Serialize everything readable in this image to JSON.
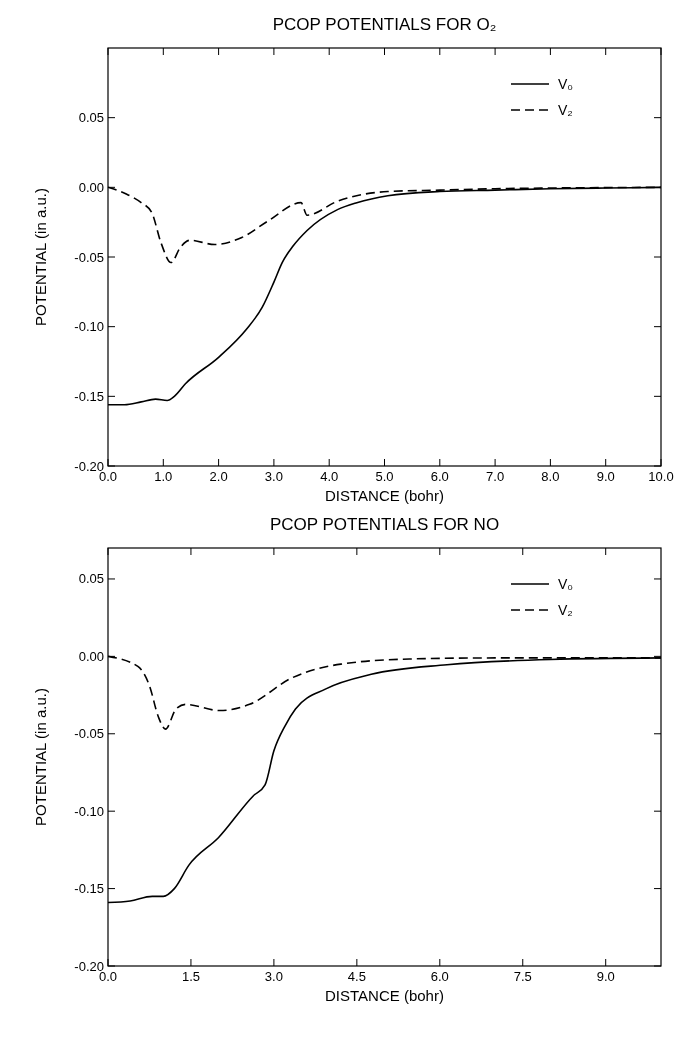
{
  "chart_data": [
    {
      "type": "line",
      "title": "PCOP POTENTIALS FOR O₂",
      "xlabel": "DISTANCE (bohr)",
      "ylabel": "POTENTIAL (in a.u.)",
      "legend": "top right",
      "grid": false,
      "xlim": [
        0,
        10
      ],
      "ylim": [
        -0.2,
        0.1
      ],
      "xticks": [
        {
          "value": 0,
          "label": "0.0"
        },
        {
          "value": 1,
          "label": "1.0"
        },
        {
          "value": 2,
          "label": "2.0"
        },
        {
          "value": 3,
          "label": "3.0"
        },
        {
          "value": 4,
          "label": "4.0"
        },
        {
          "value": 5,
          "label": "5.0"
        },
        {
          "value": 6,
          "label": "6.0"
        },
        {
          "value": 7,
          "label": "7.0"
        },
        {
          "value": 8,
          "label": "8.0"
        },
        {
          "value": 9,
          "label": "9.0"
        },
        {
          "value": 10,
          "label": "10.0"
        }
      ],
      "yticks": [
        {
          "value": -0.2,
          "label": "-0.20"
        },
        {
          "value": -0.15,
          "label": "-0.15"
        },
        {
          "value": -0.1,
          "label": "-0.10"
        },
        {
          "value": -0.05,
          "label": "-0.05"
        },
        {
          "value": 0,
          "label": "0.00"
        },
        {
          "value": 0.05,
          "label": "0.05"
        }
      ],
      "series": [
        {
          "name": "V₀",
          "color": "#000000",
          "line_style": "solid",
          "x": [
            0,
            0.3,
            0.6,
            0.86,
            1.07,
            1.2,
            1.4,
            2.0,
            2.5,
            2.79,
            3.0,
            3.15,
            3.35,
            3.6,
            4.15,
            4.5,
            5.06,
            6,
            7,
            8,
            9,
            10
          ],
          "values": [
            -0.156,
            -0.156,
            -0.154,
            -0.152,
            -0.153,
            -0.15,
            -0.141,
            -0.122,
            -0.102,
            -0.086,
            -0.068,
            -0.054,
            -0.042,
            -0.031,
            -0.016,
            -0.011,
            -0.006,
            -0.003,
            -0.002,
            -0.001,
            -0.0005,
            0
          ]
        },
        {
          "name": "V₂",
          "color": "#000000",
          "line_style": "dashed",
          "x": [
            0,
            0.34,
            0.6,
            0.79,
            0.96,
            1.14,
            1.31,
            1.48,
            1.93,
            2.42,
            2.9,
            3.49,
            3.6,
            4.15,
            5.06,
            6,
            7,
            8,
            10
          ],
          "values": [
            0,
            -0.005,
            -0.011,
            -0.018,
            -0.04,
            -0.054,
            -0.043,
            -0.038,
            -0.041,
            -0.036,
            -0.024,
            -0.011,
            -0.02,
            -0.01,
            -0.003,
            -0.002,
            -0.001,
            -0.0005,
            0
          ]
        }
      ]
    },
    {
      "type": "line",
      "title": "PCOP POTENTIALS FOR NO",
      "xlabel": "DISTANCE (bohr)",
      "ylabel": "POTENTIAL (in a.u.)",
      "legend": "top right",
      "grid": false,
      "xlim": [
        0,
        10
      ],
      "ylim": [
        -0.2,
        0.07
      ],
      "xticks": [
        {
          "value": 0,
          "label": "0.0"
        },
        {
          "value": 1.5,
          "label": "1.5"
        },
        {
          "value": 3,
          "label": "3.0"
        },
        {
          "value": 4.5,
          "label": "4.5"
        },
        {
          "value": 6,
          "label": "6.0"
        },
        {
          "value": 7.5,
          "label": "7.5"
        },
        {
          "value": 9,
          "label": "9.0"
        }
      ],
      "yticks": [
        {
          "value": -0.2,
          "label": "-0.20"
        },
        {
          "value": -0.15,
          "label": "-0.15"
        },
        {
          "value": -0.1,
          "label": "-0.10"
        },
        {
          "value": -0.05,
          "label": "-0.05"
        },
        {
          "value": 0,
          "label": "0.00"
        },
        {
          "value": 0.05,
          "label": "0.05"
        }
      ],
      "series": [
        {
          "name": "V₀",
          "color": "#000000",
          "line_style": "solid",
          "x": [
            0,
            0.4,
            0.8,
            1.0,
            1.2,
            1.46,
            2.0,
            2.63,
            2.84,
            3.0,
            3.2,
            3.39,
            3.94,
            4.76,
            6.13,
            8,
            10
          ],
          "values": [
            -0.159,
            -0.158,
            -0.155,
            -0.155,
            -0.15,
            -0.135,
            -0.117,
            -0.09,
            -0.083,
            -0.061,
            -0.045,
            -0.034,
            -0.021,
            -0.0116,
            -0.0054,
            -0.002,
            -0.001
          ]
        },
        {
          "name": "V₂",
          "color": "#000000",
          "line_style": "dashed",
          "x": [
            0,
            0.54,
            0.75,
            0.91,
            1.04,
            1.23,
            1.4,
            2.02,
            2.56,
            3.32,
            4.21,
            5.45,
            7,
            10
          ],
          "values": [
            0,
            -0.0065,
            -0.019,
            -0.039,
            -0.047,
            -0.034,
            -0.031,
            -0.035,
            -0.031,
            -0.014,
            -0.005,
            -0.0017,
            -0.001,
            -0.001
          ]
        }
      ]
    }
  ]
}
